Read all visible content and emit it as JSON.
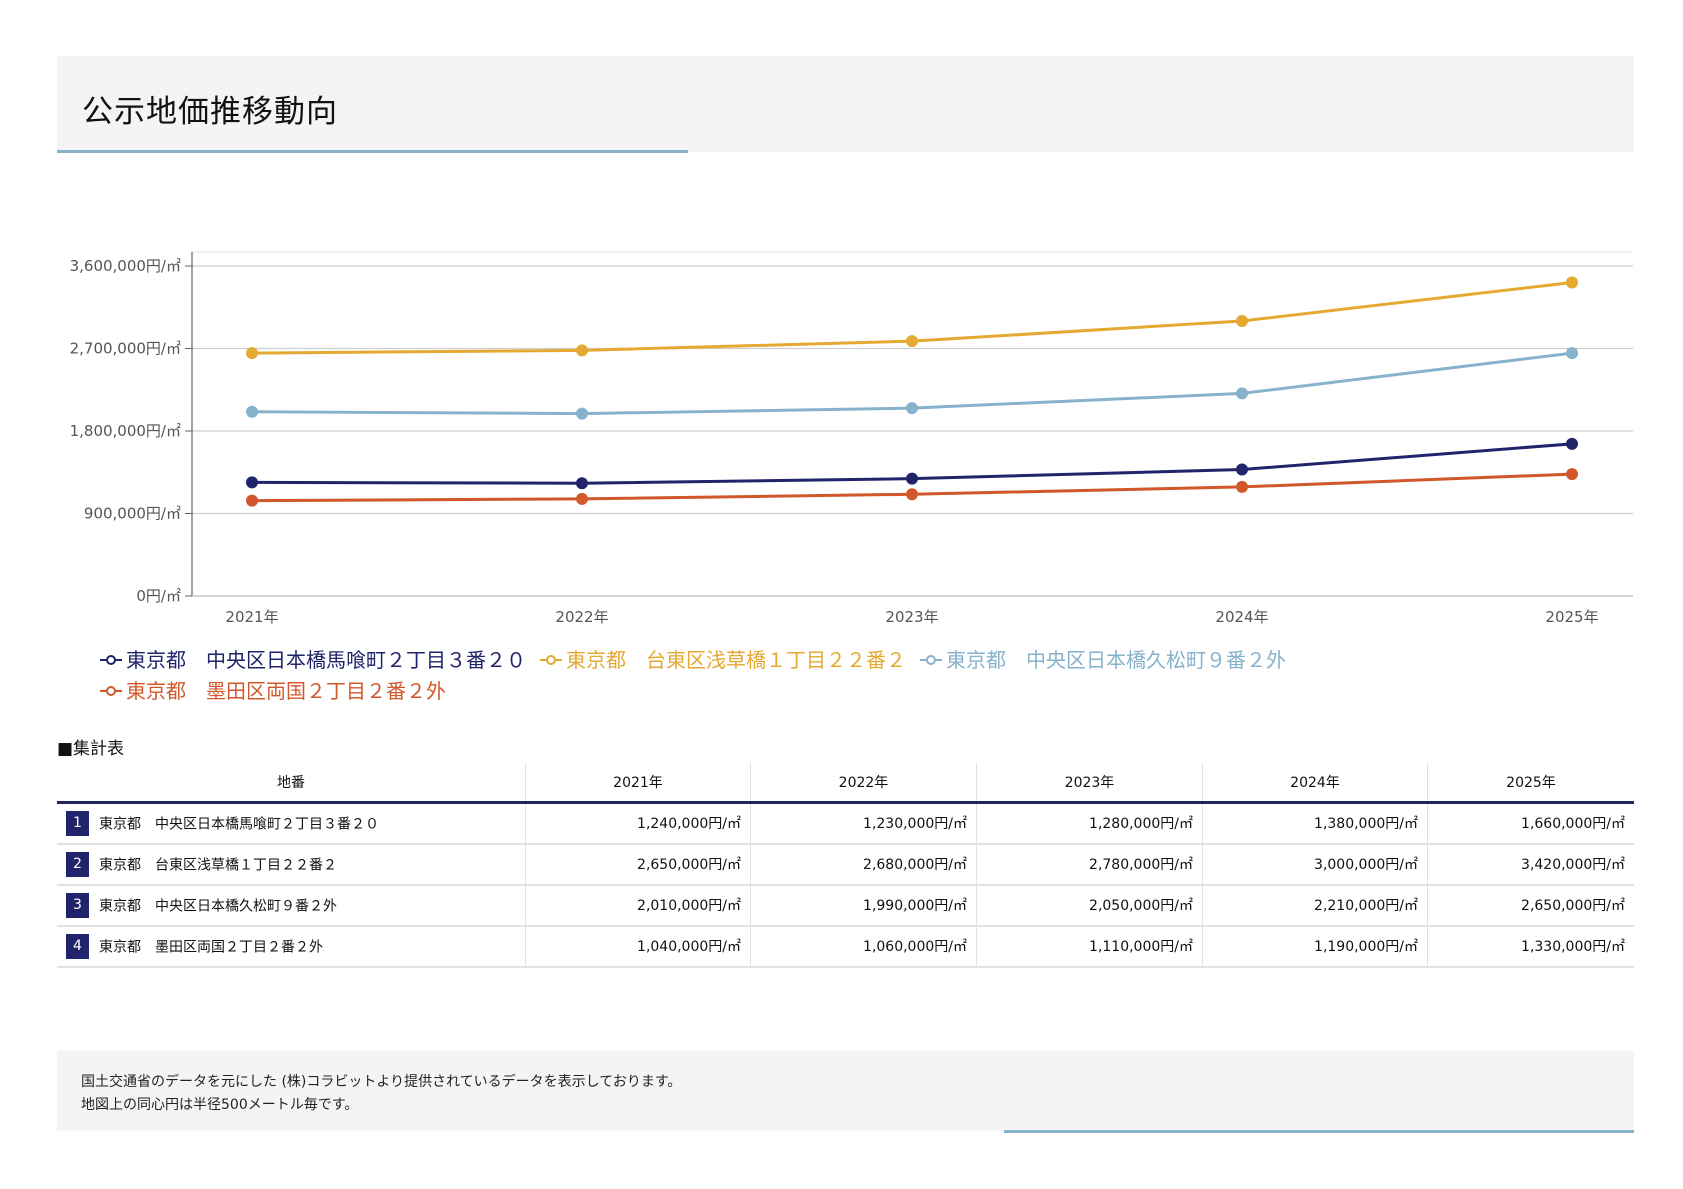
{
  "page": {
    "title": "公示地価推移動向"
  },
  "chart_data": {
    "type": "line",
    "title": "",
    "xlabel": "",
    "ylabel": "",
    "categories": [
      "2021年",
      "2022年",
      "2023年",
      "2024年",
      "2025年"
    ],
    "y_ticks": [
      {
        "value": 0,
        "label": "0円/㎡"
      },
      {
        "value": 900000,
        "label": "900,000円/㎡"
      },
      {
        "value": 1800000,
        "label": "1,800,000円/㎡"
      },
      {
        "value": 2700000,
        "label": "2,700,000円/㎡"
      },
      {
        "value": 3600000,
        "label": "3,600,000円/㎡"
      }
    ],
    "ylim": [
      0,
      3600000
    ],
    "grid": true,
    "legend_position": "bottom-left",
    "series": [
      {
        "name": "東京都　中央区日本橋馬喰町２丁目３番２０",
        "color": "#20246a",
        "values": [
          1240000,
          1230000,
          1280000,
          1380000,
          1660000
        ]
      },
      {
        "name": "東京都　台東区浅草橋１丁目２２番２",
        "color": "#e5a832",
        "values": [
          2650000,
          2680000,
          2780000,
          3000000,
          3420000
        ]
      },
      {
        "name": "東京都　中央区日本橋久松町９番２外",
        "color": "#86b2cc",
        "values": [
          2010000,
          1990000,
          2050000,
          2210000,
          2650000
        ]
      },
      {
        "name": "東京都　墨田区両国２丁目２番２外",
        "color": "#d0582a",
        "values": [
          1040000,
          1060000,
          1110000,
          1190000,
          1330000
        ]
      }
    ]
  },
  "table": {
    "title": "■集計表",
    "headers": [
      "地番",
      "2021年",
      "2022年",
      "2023年",
      "2024年",
      "2025年"
    ],
    "rows": [
      {
        "no": "1",
        "name": "東京都　中央区日本橋馬喰町２丁目３番２０",
        "cells": [
          "1,240,000円/㎡",
          "1,230,000円/㎡",
          "1,280,000円/㎡",
          "1,380,000円/㎡",
          "1,660,000円/㎡"
        ]
      },
      {
        "no": "2",
        "name": "東京都　台東区浅草橋１丁目２２番２",
        "cells": [
          "2,650,000円/㎡",
          "2,680,000円/㎡",
          "2,780,000円/㎡",
          "3,000,000円/㎡",
          "3,420,000円/㎡"
        ]
      },
      {
        "no": "3",
        "name": "東京都　中央区日本橋久松町９番２外",
        "cells": [
          "2,010,000円/㎡",
          "1,990,000円/㎡",
          "2,050,000円/㎡",
          "2,210,000円/㎡",
          "2,650,000円/㎡"
        ]
      },
      {
        "no": "4",
        "name": "東京都　墨田区両国２丁目２番２外",
        "cells": [
          "1,040,000円/㎡",
          "1,060,000円/㎡",
          "1,110,000円/㎡",
          "1,190,000円/㎡",
          "1,330,000円/㎡"
        ]
      }
    ]
  },
  "footer": {
    "line1": "国土交通省のデータを元にした (株)コラビットより提供されているデータを表示しております。",
    "line2": "地図上の同心円は半径500メートル毎です。"
  }
}
